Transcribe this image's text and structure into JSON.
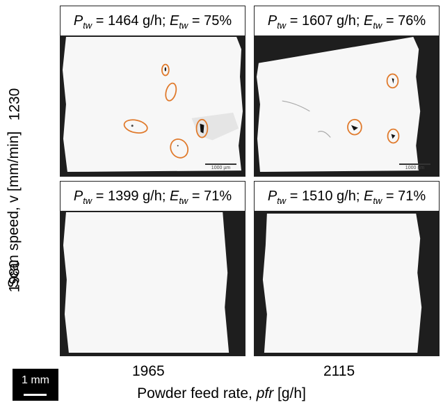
{
  "y_axis": {
    "label": "Scan speed, v [mm/min]",
    "rows": [
      "1230",
      "1980"
    ]
  },
  "x_axis": {
    "label_prefix": "Powder feed rate, ",
    "label_var": "pfr",
    "label_suffix": " [g/h]",
    "cols": [
      "1965",
      "2115"
    ]
  },
  "panels": [
    {
      "ptw": "1464 g/h",
      "etw": "75%",
      "scalebar": "1000 µm",
      "marked_defects": 6
    },
    {
      "ptw": "1607 g/h",
      "etw": "76%",
      "scalebar": "1000 µm",
      "marked_defects": 3
    },
    {
      "ptw": "1399 g/h",
      "etw": "71%",
      "scalebar": "",
      "marked_defects": 0
    },
    {
      "ptw": "1510 g/h",
      "etw": "71%",
      "scalebar": "",
      "marked_defects": 0
    }
  ],
  "scale_box": {
    "label": "1 mm"
  },
  "colors": {
    "defect_marker": "#e07a2c",
    "background": "#1e1e1e"
  }
}
